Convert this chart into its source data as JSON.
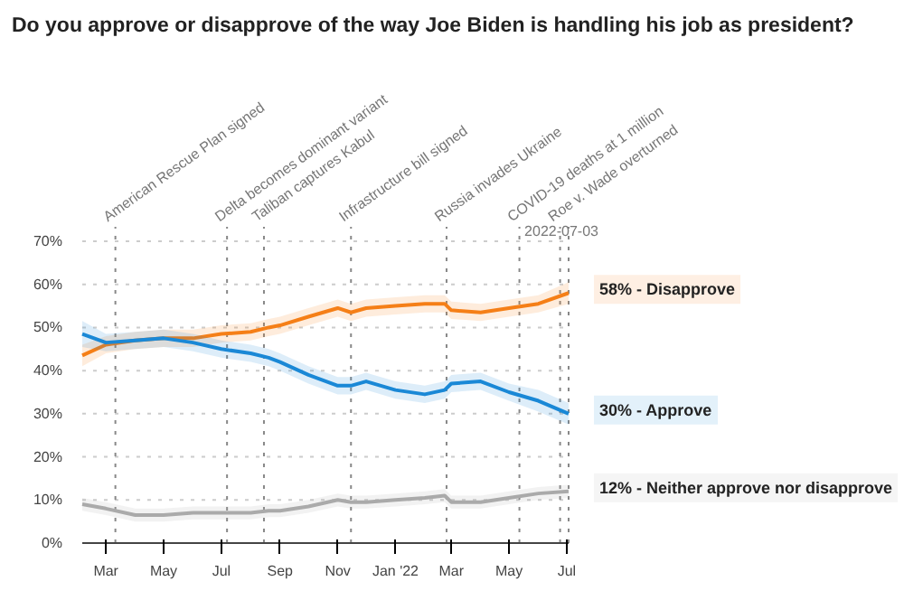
{
  "chart_data": {
    "type": "line",
    "title": "Do you approve or disapprove of the way Joe Biden is handling his job as president?",
    "xlim": [
      "2021-02-04",
      "2022-07-03"
    ],
    "xticks": [
      {
        "value": "2021-03-01",
        "label": "Mar"
      },
      {
        "value": "2021-05-01",
        "label": "May"
      },
      {
        "value": "2021-07-01",
        "label": "Jul"
      },
      {
        "value": "2021-09-01",
        "label": "Sep"
      },
      {
        "value": "2021-11-01",
        "label": "Nov"
      },
      {
        "value": "2022-01-01",
        "label": "Jan '22"
      },
      {
        "value": "2022-03-01",
        "label": "Mar"
      },
      {
        "value": "2022-05-01",
        "label": "May"
      },
      {
        "value": "2022-07-01",
        "label": "Jul"
      }
    ],
    "ylim": [
      0,
      70
    ],
    "yticks": [
      {
        "value": 0,
        "label": "0%"
      },
      {
        "value": 10,
        "label": "10%"
      },
      {
        "value": 20,
        "label": "20%"
      },
      {
        "value": 30,
        "label": "30%"
      },
      {
        "value": 40,
        "label": "40%"
      },
      {
        "value": 50,
        "label": "50%"
      },
      {
        "value": 60,
        "label": "60%"
      },
      {
        "value": 70,
        "label": "70%"
      }
    ],
    "grid": "y",
    "line_style": "solid",
    "marker": "none",
    "x": [
      "2021-02-04",
      "2021-03-01",
      "2021-04-01",
      "2021-05-01",
      "2021-06-01",
      "2021-07-01",
      "2021-08-01",
      "2021-08-20",
      "2021-09-01",
      "2021-10-01",
      "2021-11-01",
      "2021-11-15",
      "2021-12-01",
      "2022-01-01",
      "2022-02-01",
      "2022-02-22",
      "2022-03-01",
      "2022-04-01",
      "2022-05-01",
      "2022-06-01",
      "2022-07-03"
    ],
    "series": [
      {
        "name": "58% - Disapprove",
        "color": "#f57f17",
        "values": [
          43.5,
          46,
          47,
          47.5,
          47.5,
          48.5,
          49,
          50,
          50.5,
          52.5,
          54.5,
          53.5,
          54.5,
          55,
          55.5,
          55.5,
          54,
          53.5,
          54.5,
          55.5,
          58
        ],
        "lower": [
          41,
          44,
          45,
          45.5,
          45.5,
          46.5,
          47,
          48,
          48.5,
          50.5,
          52.5,
          51.5,
          52.5,
          53,
          53.5,
          53.5,
          52,
          51.5,
          52.5,
          53.5,
          55.5
        ],
        "upper": [
          46,
          48,
          49,
          49.5,
          49.5,
          50.5,
          51,
          52,
          52.5,
          54.5,
          56.5,
          55.5,
          56.5,
          57,
          57.5,
          57.5,
          56,
          55.5,
          56.5,
          57.5,
          60.5
        ]
      },
      {
        "name": "30% - Approve",
        "color": "#1a88d6",
        "values": [
          48.5,
          46.5,
          47,
          47.5,
          46.5,
          45,
          44,
          43,
          42,
          39,
          36.5,
          36.5,
          37.5,
          35.5,
          34.5,
          35.5,
          37,
          37.5,
          35,
          33,
          30
        ],
        "lower": [
          45.5,
          44.5,
          45,
          45.5,
          44.5,
          43,
          42,
          41,
          40,
          37,
          34.5,
          34.5,
          35.5,
          33.5,
          32.5,
          33.5,
          35,
          35.5,
          33,
          30.5,
          27.5
        ],
        "upper": [
          51.5,
          48.5,
          49,
          49.5,
          48.5,
          47,
          46,
          45,
          44,
          41,
          38.5,
          38.5,
          39.5,
          37.5,
          36.5,
          37.5,
          39,
          39.5,
          37,
          35.5,
          32.5
        ]
      },
      {
        "name": "12% - Neither approve nor disapprove",
        "color": "#aaaaaa",
        "values": [
          9,
          8,
          6.5,
          6.5,
          7,
          7,
          7,
          7.5,
          7.5,
          8.5,
          10,
          9.5,
          9.5,
          10,
          10.5,
          11,
          9.5,
          9.5,
          10.5,
          11.5,
          12
        ],
        "lower": [
          7.5,
          6.5,
          5,
          5,
          5.5,
          5.5,
          5.5,
          6,
          6,
          7,
          8.5,
          8,
          8,
          8.5,
          9,
          9.5,
          8,
          8,
          9,
          10,
          10.5
        ],
        "upper": [
          10.5,
          9.5,
          8,
          8,
          8.5,
          8.5,
          8.5,
          9,
          9,
          10,
          11.5,
          11,
          11,
          11.5,
          12,
          12.5,
          11,
          11,
          12,
          13,
          13.5
        ]
      }
    ],
    "ref_lines": [
      {
        "axis": "x",
        "value": "2021-03-11",
        "label": "American Rescue Plan signed",
        "line_style": "dotted",
        "color": "#888888"
      },
      {
        "axis": "x",
        "value": "2021-07-07",
        "label": "Delta becomes dominant variant",
        "line_style": "dotted",
        "color": "#888888"
      },
      {
        "axis": "x",
        "value": "2021-08-15",
        "label": "Taliban captures Kabul",
        "line_style": "dotted",
        "color": "#888888"
      },
      {
        "axis": "x",
        "value": "2021-11-15",
        "label": "Infrastructure bill signed",
        "line_style": "dotted",
        "color": "#888888"
      },
      {
        "axis": "x",
        "value": "2022-02-24",
        "label": "Russia invades Ukraine",
        "line_style": "dotted",
        "color": "#888888"
      },
      {
        "axis": "x",
        "value": "2022-05-12",
        "label": "COVID-19 deaths at 1 million",
        "line_style": "dotted",
        "color": "#888888"
      },
      {
        "axis": "x",
        "value": "2022-06-24",
        "label": "Roe v. Wade overturned",
        "line_style": "dotted",
        "color": "#888888"
      },
      {
        "axis": "x",
        "value": "2022-07-03",
        "label": "2022-07-03",
        "line_style": "dotted",
        "color": "#888888"
      }
    ]
  }
}
